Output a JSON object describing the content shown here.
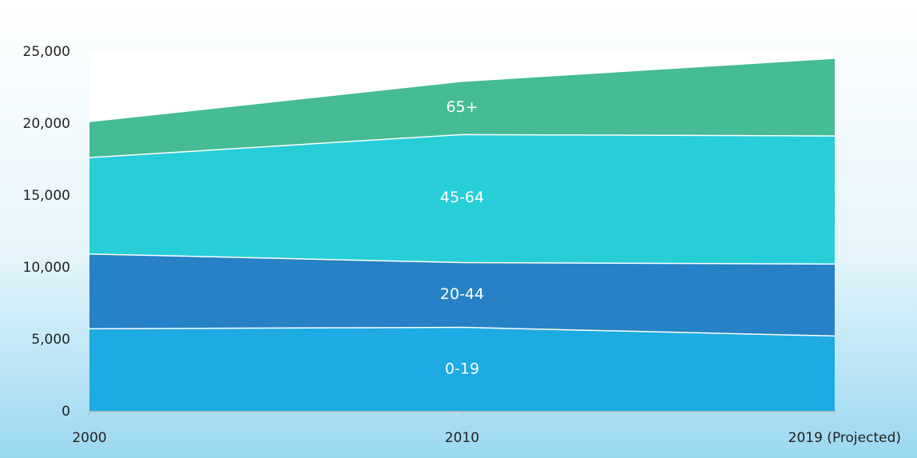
{
  "chart_data": {
    "type": "stacked_area",
    "categories": [
      "2000",
      "2010",
      "2019 (Projected)"
    ],
    "series": [
      {
        "name": "0-19",
        "color": "#1eaae2",
        "values": [
          5800,
          5900,
          5300
        ]
      },
      {
        "name": "20-44",
        "color": "#2781c6",
        "values": [
          5200,
          4500,
          5000
        ]
      },
      {
        "name": "45-64",
        "color": "#27ced8",
        "values": [
          6700,
          8900,
          8900
        ]
      },
      {
        "name": "65+",
        "color": "#45bb96",
        "values": [
          2500,
          3700,
          5400
        ]
      }
    ],
    "ylim": [
      0,
      25000
    ],
    "yticks": [
      0,
      {
        "value": 5000,
        "label": "5,000"
      },
      {
        "value": 10000,
        "label": "10,000"
      },
      {
        "value": 15000,
        "label": "15,000"
      },
      {
        "value": 20000,
        "label": "20,000"
      },
      {
        "value": 25000,
        "label": "25,000"
      }
    ],
    "grid": false
  }
}
